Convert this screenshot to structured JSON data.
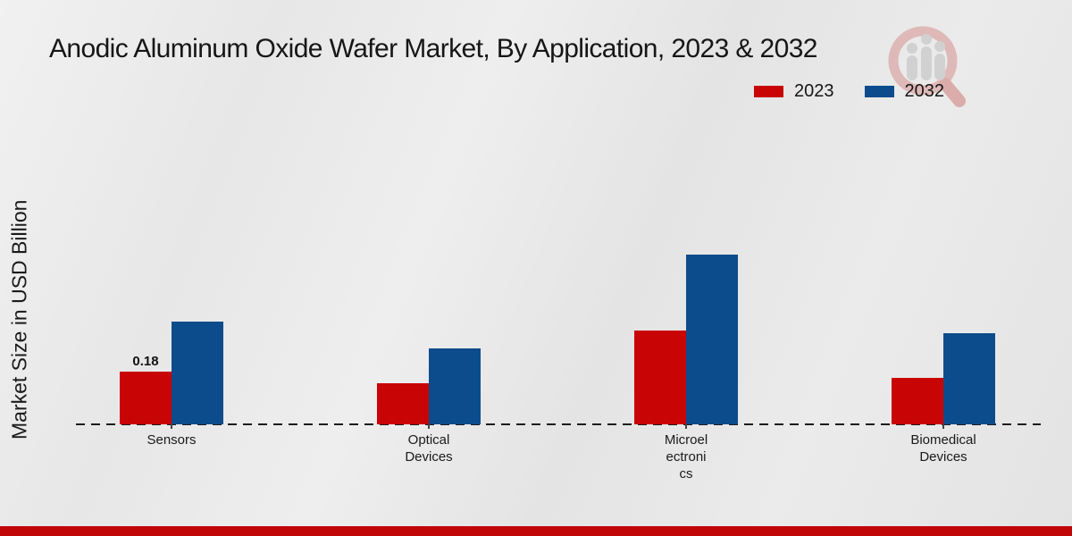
{
  "chart_data": {
    "type": "bar",
    "title": "Anodic Aluminum Oxide Wafer Market, By Application, 2023 & 2032",
    "ylabel": "Market Size in USD Billion",
    "xlabel": "",
    "ylim": [
      0,
      0.65
    ],
    "grid": false,
    "legend_position": "top-right",
    "categories": [
      "Sensors",
      "Optical Devices",
      "Microelectronics",
      "Biomedical Devices"
    ],
    "categories_display_lines": [
      [
        "Sensors"
      ],
      [
        "Optical",
        "Devices"
      ],
      [
        "Microel",
        "ectroni",
        "cs"
      ],
      [
        "Biomedical",
        "Devices"
      ]
    ],
    "series": [
      {
        "name": "2023",
        "color": "#c90404",
        "values": [
          0.18,
          0.14,
          0.32,
          0.16
        ]
      },
      {
        "name": "2032",
        "color": "#0d4c8c",
        "values": [
          0.35,
          0.26,
          0.58,
          0.31
        ]
      }
    ],
    "annotations": [
      {
        "text": "0.18",
        "series_index": 0,
        "category_index": 0
      }
    ]
  },
  "colors": {
    "footer_band": "#c00606",
    "axis_line": "#1c1c1c",
    "background": "#e8e8e8"
  },
  "watermark_icon": "magnifier-bar-chart-logo"
}
